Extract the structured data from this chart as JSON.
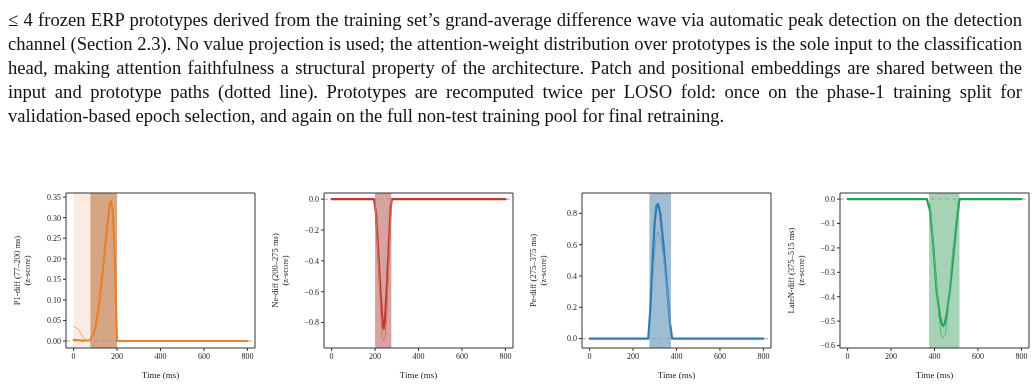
{
  "chart_data": [
    {
      "type": "other",
      "annotations": [
        "≤ 4 frozen ERP prototypes derived from the training set’s grand-average difference wave via automatic peak detection on the detection channel (Section 2.3). No value projection is used; the attention-weight distribution over prototypes is the sole input to the classification head, making attention faithfulness a structural property of the architecture. Patch and positional embeddings are shared between the input and prototype paths (dotted line). Prototypes are recomputed twice per LOSO fold: once on the phase-1 training split for validation-based epoch selection, and again on the full non-test training pool for final retraining."
      ]
    },
    {
      "type": "line",
      "xlabel": "Time (ms)",
      "ylabel": "P1-diff (77–200 ms)\n(z-score)",
      "xlim": [
        -35,
        835
      ],
      "xticks": [
        0,
        200,
        400,
        600,
        800
      ],
      "ylim": [
        -0.017,
        0.36
      ],
      "yticks": [
        {
          "value": 0,
          "label": "0.00"
        },
        0.05,
        {
          "value": 0.1,
          "label": "0.10"
        },
        0.15,
        {
          "value": 0.2,
          "label": "0.20"
        },
        0.25,
        {
          "value": 0.3,
          "label": "0.30"
        },
        0.35
      ],
      "grid": false,
      "marker": "none",
      "line_style": "solid",
      "bands": [
        {
          "axis": "x",
          "from": 0,
          "to": 77,
          "color": "#fbece3"
        },
        {
          "axis": "x",
          "from": 77,
          "to": 200,
          "color": "#d6a684"
        }
      ],
      "ref_lines": [
        {
          "axis": "y",
          "value": 0,
          "color": "#999999",
          "line_style": "dashed"
        }
      ],
      "series": [
        {
          "color": "#e8822a",
          "x": [
            0,
            40,
            77,
            100,
            120,
            140,
            155,
            165,
            172,
            180,
            190,
            197,
            200,
            800
          ],
          "values": [
            0.003,
            0.001,
            0.002,
            0.03,
            0.1,
            0.2,
            0.28,
            0.33,
            0.34,
            0.32,
            0.2,
            0.05,
            0,
            0
          ]
        },
        {
          "color": "#f0a868",
          "x": [
            0,
            20,
            40,
            60,
            77
          ],
          "values": [
            0.035,
            0.03,
            0.012,
            0,
            0.002
          ]
        }
      ]
    },
    {
      "type": "line",
      "xlabel": "Time (ms)",
      "ylabel": "Ne-diff (200–275 ms)\n(z-score)",
      "xlim": [
        -35,
        835
      ],
      "xticks": [
        0,
        200,
        400,
        600,
        800
      ],
      "ylim": [
        -0.965,
        0.04
      ],
      "yticks": [
        {
          "value": 0,
          "label": "0.0"
        },
        {
          "value": -0.2,
          "label": "−0.2"
        },
        {
          "value": -0.4,
          "label": "−0.4"
        },
        {
          "value": -0.6,
          "label": "−0.6"
        },
        {
          "value": -0.8,
          "label": "−0.8"
        }
      ],
      "grid": false,
      "marker": "none",
      "line_style": "solid",
      "bands": [
        {
          "axis": "x",
          "from": 200,
          "to": 275,
          "color": "#d4a3a2"
        }
      ],
      "ref_lines": [
        {
          "axis": "y",
          "value": 0,
          "color": "#999999",
          "line_style": "dashed"
        }
      ],
      "series": [
        {
          "color": "#c0392b",
          "x": [
            0,
            195,
            205,
            215,
            225,
            235,
            240,
            245,
            255,
            265,
            272,
            278,
            800
          ],
          "values": [
            0,
            0,
            -0.1,
            -0.35,
            -0.6,
            -0.8,
            -0.84,
            -0.8,
            -0.55,
            -0.25,
            -0.05,
            0,
            0
          ]
        },
        {
          "color": "#d9706a",
          "x": [
            200,
            215,
            225,
            232,
            240,
            248,
            255,
            265,
            275
          ],
          "values": [
            0,
            -0.4,
            -0.7,
            -0.89,
            -0.92,
            -0.89,
            -0.7,
            -0.35,
            0
          ]
        }
      ]
    },
    {
      "type": "line",
      "xlabel": "Time (ms)",
      "ylabel": "Pe-diff (275–375 ms)\n(z-score)",
      "xlim": [
        -35,
        835
      ],
      "xticks": [
        0,
        200,
        400,
        600,
        800
      ],
      "ylim": [
        -0.06,
        0.93
      ],
      "yticks": [
        {
          "value": 0,
          "label": "0.0"
        },
        0.2,
        0.4,
        0.6,
        0.8
      ],
      "grid": false,
      "marker": "none",
      "line_style": "solid",
      "bands": [
        {
          "axis": "x",
          "from": 275,
          "to": 375,
          "color": "#9fbdd2"
        }
      ],
      "ref_lines": [
        {
          "axis": "y",
          "value": 0,
          "color": "#999999",
          "line_style": "dashed"
        }
      ],
      "series": [
        {
          "color": "#2f7bb5",
          "x": [
            0,
            270,
            280,
            290,
            300,
            308,
            315,
            325,
            340,
            355,
            370,
            380,
            800
          ],
          "values": [
            0,
            0,
            0.2,
            0.5,
            0.75,
            0.85,
            0.86,
            0.8,
            0.6,
            0.35,
            0.1,
            0,
            0
          ]
        },
        {
          "color": "#6fa3cc",
          "x": [
            290,
            305,
            315,
            325,
            340,
            360,
            372
          ],
          "values": [
            0.35,
            0.64,
            0.68,
            0.65,
            0.52,
            0.25,
            0.08
          ]
        }
      ]
    },
    {
      "type": "line",
      "xlabel": "Time (ms)",
      "ylabel": "LateN-diff (375–515 ms)\n(z-score)",
      "xlim": [
        -35,
        835
      ],
      "xticks": [
        0,
        200,
        400,
        600,
        800
      ],
      "ylim": [
        -0.61,
        0.025
      ],
      "yticks": [
        {
          "value": 0,
          "label": "0.0"
        },
        {
          "value": -0.1,
          "label": "−0.1"
        },
        {
          "value": -0.2,
          "label": "−0.2"
        },
        {
          "value": -0.3,
          "label": "−0.3"
        },
        {
          "value": -0.4,
          "label": "−0.4"
        },
        {
          "value": -0.5,
          "label": "−0.5"
        },
        {
          "value": -0.6,
          "label": "−0.6"
        }
      ],
      "grid": false,
      "marker": "none",
      "line_style": "solid",
      "bands": [
        {
          "axis": "x",
          "from": 375,
          "to": 515,
          "color": "#a6d3b5"
        }
      ],
      "ref_lines": [
        {
          "axis": "y",
          "value": 0,
          "color": "#999999",
          "line_style": "dashed"
        }
      ],
      "series": [
        {
          "color": "#22a056",
          "x": [
            0,
            365,
            380,
            395,
            410,
            425,
            433,
            440,
            447,
            455,
            470,
            490,
            505,
            515,
            800
          ],
          "values": [
            0,
            0,
            -0.05,
            -0.2,
            -0.38,
            -0.48,
            -0.51,
            -0.52,
            -0.51,
            -0.48,
            -0.38,
            -0.2,
            -0.07,
            0,
            0
          ]
        },
        {
          "color": "#55bb80",
          "x": [
            380,
            400,
            420,
            430,
            440,
            450,
            460,
            480,
            510
          ],
          "values": [
            -0.02,
            -0.25,
            -0.48,
            -0.555,
            -0.57,
            -0.555,
            -0.48,
            -0.25,
            0
          ]
        }
      ]
    }
  ]
}
